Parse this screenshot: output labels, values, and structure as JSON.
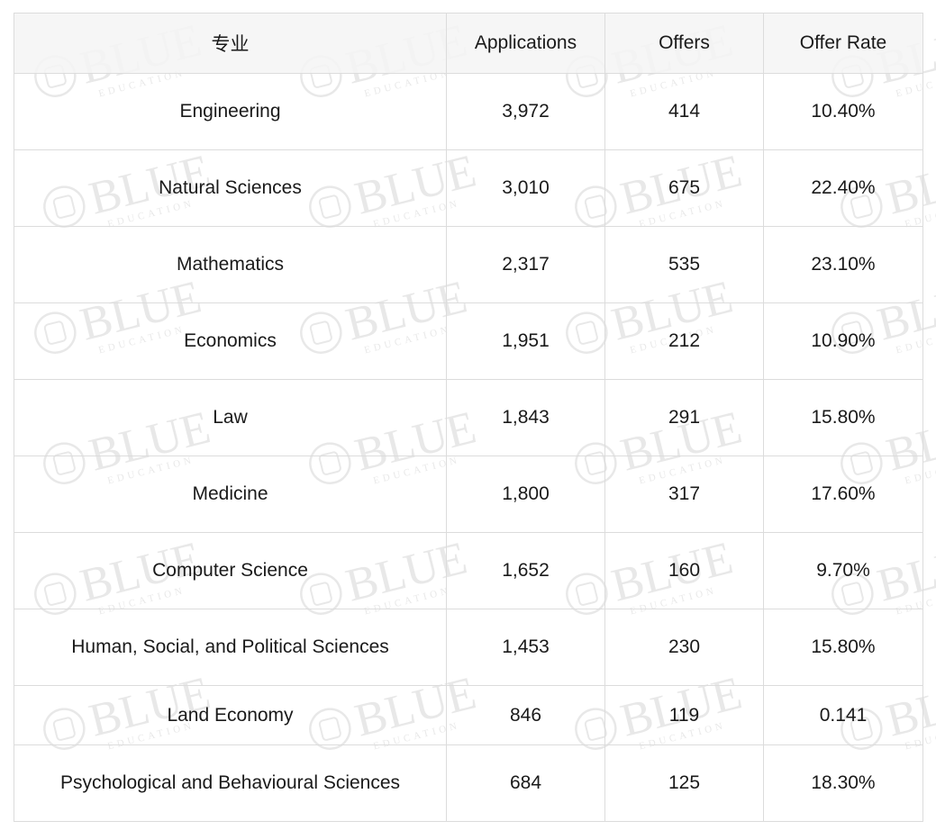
{
  "watermark": {
    "text": "BLUE",
    "subtext": "EDUCATION",
    "color": "#e6e6e6"
  },
  "table": {
    "headers": [
      "专业",
      "Applications",
      "Offers",
      "Offer Rate"
    ],
    "rows": [
      {
        "major": "Engineering",
        "applications": "3,972",
        "offers": "414",
        "rate": "10.40%"
      },
      {
        "major": "Natural Sciences",
        "applications": "3,010",
        "offers": "675",
        "rate": "22.40%"
      },
      {
        "major": "Mathematics",
        "applications": "2,317",
        "offers": "535",
        "rate": "23.10%"
      },
      {
        "major": "Economics",
        "applications": "1,951",
        "offers": "212",
        "rate": "10.90%"
      },
      {
        "major": "Law",
        "applications": "1,843",
        "offers": "291",
        "rate": "15.80%"
      },
      {
        "major": "Medicine",
        "applications": "1,800",
        "offers": "317",
        "rate": "17.60%"
      },
      {
        "major": "Computer Science",
        "applications": "1,652",
        "offers": "160",
        "rate": "9.70%"
      },
      {
        "major": "Human, Social, and Political Sciences",
        "applications": "1,453",
        "offers": "230",
        "rate": "15.80%"
      },
      {
        "major": "Land Economy",
        "applications": "846",
        "offers": "119",
        "rate": "0.141"
      },
      {
        "major": "Psychological and Behavioural Sciences",
        "applications": "684",
        "offers": "125",
        "rate": "18.30%"
      }
    ]
  }
}
